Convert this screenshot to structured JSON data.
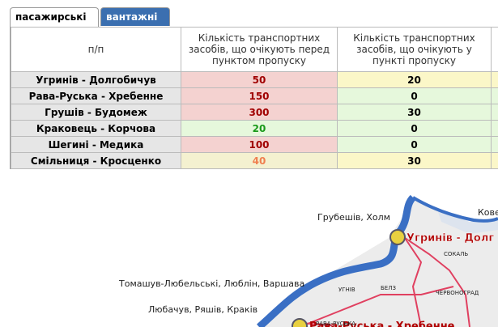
{
  "tabs": [
    "пасажирські",
    "вантажні"
  ],
  "table": {
    "header": [
      "п/п",
      "Кількість транспортних засобів, що очікують перед пунктом пропуску",
      "Кількість транспортних засобів, що очікують у пункті пропуску"
    ],
    "rows": [
      [
        "Угринів - Долгобичув",
        "50",
        "20"
      ],
      [
        "Рава-Руська - Хребенне",
        "150",
        "0"
      ],
      [
        "Грушів - Будомеж",
        "300",
        "30"
      ],
      [
        "Краковець - Корчова",
        "20",
        "0"
      ],
      [
        "Шегині - Медика",
        "100",
        "0"
      ],
      [
        "Смільниця - Кросценко",
        "40",
        "30"
      ]
    ]
  },
  "map": {
    "labels": [
      "Грубешів, Холм",
      "Кове",
      "Угринів - Долг",
      "СОКАЛЬ",
      "УГНІВ",
      "БЕЛЗ",
      "ЧЕРВОНОГРАД",
      "Томашув-Любельські, Люблін, Варшава",
      "Рава-Руська - Хребенне",
      "Любачув, Ряшів, Краків",
      "РАВА-РУСЬКА"
    ]
  }
}
